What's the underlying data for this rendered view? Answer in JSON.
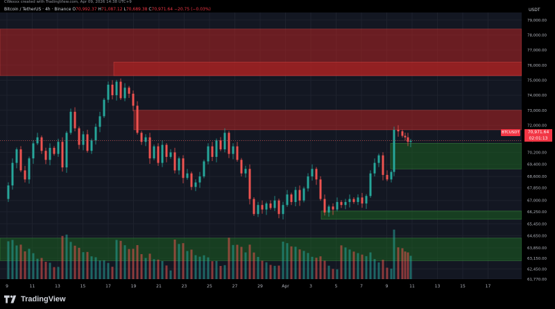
{
  "header": {
    "created_line": "CWexxx created with TradingView.com, Apr 09, 2026 14:38 UTC+9",
    "symbol": "Bitcoin / TetherUS · 4h · Binance",
    "o_label": "O",
    "o_value": "70,992.37",
    "h_label": "H",
    "h_value": "71,087.12",
    "l_label": "L",
    "l_value": "70,689.38",
    "c_label": "C",
    "c_value": "70,971.64",
    "change": "−20.75 (−0.03%)"
  },
  "currency": "USDT",
  "symbol_tag": "BTCUSDT",
  "last_price": {
    "price": "70,971.64",
    "countdown": "02:01:13"
  },
  "footer": {
    "brand": "TradingView"
  },
  "colors": {
    "background": "#000000",
    "up": "#26a69a",
    "down": "#ef5350",
    "red_zone": "#b22222",
    "green_zone": "#1b5e20",
    "text": "#b2b5be"
  },
  "chart_data": {
    "type": "candlestick",
    "ylim": [
      61770,
      79500
    ],
    "y_ticks": [
      "79,000.00",
      "78,000.00",
      "77,000.00",
      "76,000.00",
      "75,000.00",
      "74,000.00",
      "73,000.00",
      "72,000.00",
      "71,000.00",
      "70,200.00",
      "69,400.00",
      "68,600.00",
      "67,850.00",
      "67,000.00",
      "66,250.00",
      "65,450.00",
      "64,650.00",
      "63,850.00",
      "63,150.00",
      "62,450.00",
      "61,770.00"
    ],
    "x_ticks": [
      "9",
      "11",
      "13",
      "15",
      "17",
      "19",
      "21",
      "23",
      "25",
      "27",
      "29",
      "Apr",
      "3",
      "5",
      "7",
      "9",
      "11",
      "13",
      "15",
      "17"
    ],
    "zones": [
      {
        "kind": "supply",
        "from": 75300,
        "to": 78400
      },
      {
        "kind": "supply",
        "from": 75300,
        "to": 76200
      },
      {
        "kind": "supply",
        "from": 71700,
        "to": 73000
      },
      {
        "kind": "demand",
        "from": 69100,
        "to": 70800
      },
      {
        "kind": "demand",
        "from": 65750,
        "to": 66300
      },
      {
        "kind": "demand",
        "from": 63000,
        "to": 64500
      }
    ],
    "price_path": [
      [
        0,
        67100
      ],
      [
        6,
        68000
      ],
      [
        12,
        69500
      ],
      [
        18,
        70400
      ],
      [
        24,
        69000
      ],
      [
        30,
        68400
      ],
      [
        36,
        69800
      ],
      [
        42,
        70800
      ],
      [
        48,
        71200
      ],
      [
        54,
        70300
      ],
      [
        60,
        69700
      ],
      [
        66,
        70500
      ],
      [
        72,
        70100
      ],
      [
        78,
        70900
      ],
      [
        84,
        69200
      ],
      [
        90,
        71500
      ],
      [
        96,
        72900
      ],
      [
        102,
        71800
      ],
      [
        108,
        70700
      ],
      [
        114,
        71400
      ],
      [
        120,
        70300
      ],
      [
        126,
        71000
      ],
      [
        132,
        71900
      ],
      [
        138,
        72600
      ],
      [
        144,
        73700
      ],
      [
        150,
        74700
      ],
      [
        156,
        74000
      ],
      [
        162,
        74900
      ],
      [
        168,
        73800
      ],
      [
        174,
        74500
      ],
      [
        180,
        74100
      ],
      [
        186,
        73300
      ],
      [
        192,
        71500
      ],
      [
        198,
        70900
      ],
      [
        204,
        71200
      ],
      [
        210,
        69800
      ],
      [
        216,
        70600
      ],
      [
        222,
        69500
      ],
      [
        228,
        70700
      ],
      [
        234,
        69900
      ],
      [
        240,
        70200
      ],
      [
        246,
        69000
      ],
      [
        252,
        69800
      ],
      [
        258,
        68500
      ],
      [
        264,
        68800
      ],
      [
        270,
        67900
      ],
      [
        276,
        68200
      ],
      [
        282,
        68600
      ],
      [
        288,
        69600
      ],
      [
        294,
        70600
      ],
      [
        300,
        69900
      ],
      [
        306,
        71000
      ],
      [
        312,
        70400
      ],
      [
        318,
        71500
      ],
      [
        324,
        70100
      ],
      [
        330,
        70600
      ],
      [
        336,
        69700
      ],
      [
        342,
        68800
      ],
      [
        348,
        69100
      ],
      [
        354,
        67100
      ],
      [
        360,
        66100
      ],
      [
        366,
        66700
      ],
      [
        372,
        66400
      ],
      [
        378,
        66800
      ],
      [
        384,
        66500
      ],
      [
        390,
        67000
      ],
      [
        396,
        66100
      ],
      [
        402,
        66700
      ],
      [
        408,
        67400
      ],
      [
        414,
        66900
      ],
      [
        420,
        67700
      ],
      [
        426,
        67000
      ],
      [
        432,
        67800
      ],
      [
        438,
        68600
      ],
      [
        444,
        69100
      ],
      [
        450,
        68400
      ],
      [
        456,
        67100
      ],
      [
        462,
        66200
      ],
      [
        468,
        66600
      ],
      [
        474,
        66400
      ],
      [
        480,
        66900
      ],
      [
        486,
        66700
      ],
      [
        492,
        66900
      ],
      [
        498,
        67100
      ],
      [
        504,
        66900
      ],
      [
        510,
        67200
      ],
      [
        516,
        66800
      ],
      [
        522,
        67300
      ],
      [
        528,
        68800
      ],
      [
        534,
        69500
      ],
      [
        540,
        70000
      ],
      [
        546,
        68700
      ],
      [
        552,
        68400
      ],
      [
        558,
        68900
      ],
      [
        562,
        71700
      ],
      [
        568,
        71600
      ],
      [
        574,
        71300
      ],
      [
        578,
        71200
      ],
      [
        582,
        70900
      ],
      [
        586,
        70972
      ]
    ]
  }
}
